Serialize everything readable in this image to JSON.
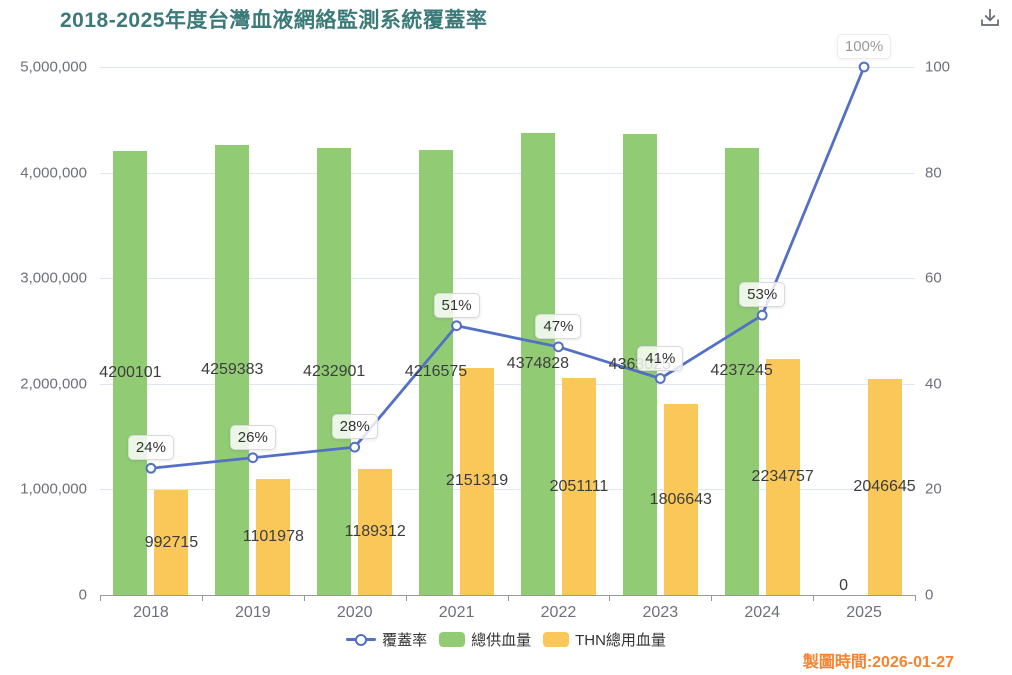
{
  "title": "2018-2025年度台灣血液網絡監測系統覆蓋率",
  "toolbar": {
    "download_tooltip": "下載"
  },
  "footer": {
    "timestamp": "製圖時間:2026-01-27"
  },
  "legend": [
    {
      "label": "覆蓋率",
      "type": "line",
      "color": "#5470c6"
    },
    {
      "label": "總供血量",
      "type": "bar",
      "color": "#91cc75"
    },
    {
      "label": "THN總用血量",
      "type": "bar",
      "color": "#fac858"
    }
  ],
  "colors": {
    "line_blue": "#5470c6",
    "bar_green": "#91cc75",
    "bar_yellow": "#fac858",
    "title_teal": "#3b7a79",
    "axis_text": "#6e7079",
    "timestamp_orange": "#f9822e"
  },
  "chart_data": {
    "type": "bar",
    "subtype": "grouped bars with overlay line (dual axis)",
    "title": "2018-2025年度台灣血液網絡監測系統覆蓋率",
    "categories": [
      "2018",
      "2019",
      "2020",
      "2021",
      "2022",
      "2023",
      "2024",
      "2025"
    ],
    "series": [
      {
        "name": "總供血量",
        "type": "bar",
        "axis": "left",
        "color": "#91cc75",
        "values": [
          4200101,
          4259383,
          4232901,
          4216575,
          4374828,
          4363025,
          4237245,
          0
        ]
      },
      {
        "name": "THN總用血量",
        "type": "bar",
        "axis": "left",
        "color": "#fac858",
        "values": [
          992715,
          1101978,
          1189312,
          2151319,
          2051111,
          1806643,
          2234757,
          2046645
        ]
      },
      {
        "name": "覆蓋率",
        "type": "line",
        "axis": "right",
        "color": "#5470c6",
        "values": [
          24,
          26,
          28,
          51,
          47,
          41,
          53,
          100
        ],
        "labels": [
          "24%",
          "26%",
          "28%",
          "51%",
          "47%",
          "41%",
          "53%",
          "100%"
        ]
      }
    ],
    "left_axis": {
      "min": 0,
      "max": 5000000,
      "ticks": [
        "0",
        "1,000,000",
        "2,000,000",
        "3,000,000",
        "4,000,000",
        "5,000,000"
      ]
    },
    "right_axis": {
      "min": 0,
      "max": 100,
      "ticks": [
        "0",
        "20",
        "40",
        "60",
        "80",
        "100"
      ]
    },
    "grid": true,
    "legend_position": "bottom"
  }
}
